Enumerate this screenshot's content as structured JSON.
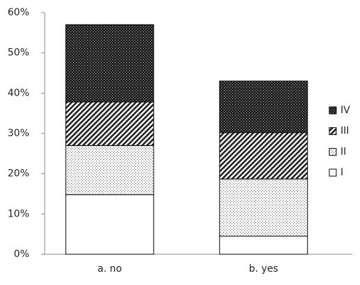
{
  "chart_data": {
    "type": "stacked_bar",
    "categories": [
      "a. no",
      "b. yes"
    ],
    "series": [
      {
        "name": "I",
        "pattern": "none",
        "values": [
          14.8,
          4.5
        ]
      },
      {
        "name": "II",
        "pattern": "dots",
        "values": [
          12.2,
          14.2
        ]
      },
      {
        "name": "III",
        "pattern": "diagonal",
        "values": [
          10.8,
          11.5
        ]
      },
      {
        "name": "IV",
        "pattern": "crosshatch",
        "values": [
          19.2,
          12.8
        ]
      }
    ],
    "ylim": [
      0,
      60
    ],
    "yticks": [
      {
        "value": 0,
        "label": "0%"
      },
      {
        "value": 10,
        "label": "10%"
      },
      {
        "value": 20,
        "label": "20%"
      },
      {
        "value": 30,
        "label": "30%"
      },
      {
        "value": 40,
        "label": "40%"
      },
      {
        "value": 50,
        "label": "50%"
      },
      {
        "value": 60,
        "label": "60%"
      }
    ],
    "grid": false,
    "legend": "right"
  }
}
